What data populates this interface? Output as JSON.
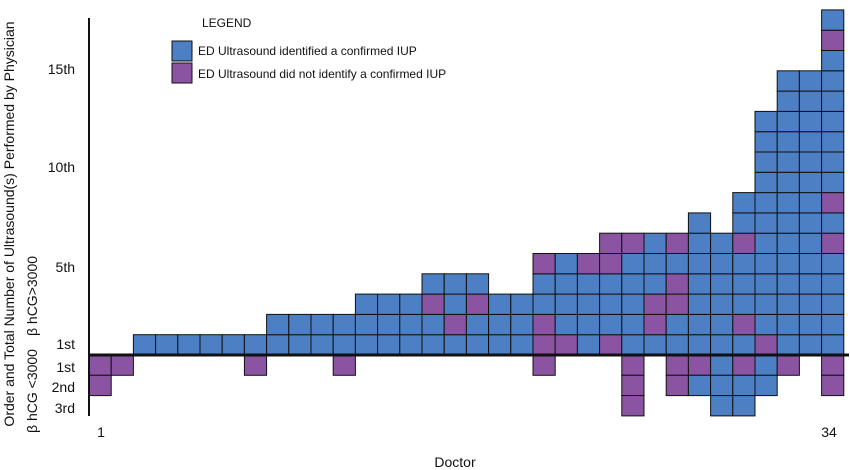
{
  "chart_data": {
    "type": "bar",
    "xlabel": "Doctor",
    "ylabel": "Order and Total Number of Ultrasound(s) Performed by Physician",
    "x_tick_labels": [
      "1",
      "34"
    ],
    "doctors": [
      1,
      2,
      3,
      4,
      5,
      6,
      7,
      8,
      9,
      10,
      11,
      12,
      13,
      14,
      15,
      16,
      17,
      18,
      19,
      20,
      21,
      22,
      23,
      24,
      25,
      26,
      27,
      28,
      29,
      30,
      31,
      32,
      33,
      34
    ],
    "upper_axis_label": "β hCG>3000",
    "lower_axis_label": "β hCG <3000",
    "upper_tick_labels": [
      {
        "label": "1st",
        "order": 1
      },
      {
        "label": "5th",
        "order": 5
      },
      {
        "label": "10th",
        "order": 10
      },
      {
        "label": "15th",
        "order": 15
      }
    ],
    "lower_tick_labels": [
      {
        "label": "1st",
        "order": 1
      },
      {
        "label": "2nd",
        "order": 2
      },
      {
        "label": "3rd",
        "order": 3
      }
    ],
    "legend": {
      "title": "LEGEND",
      "items": [
        {
          "label": "ED Ultrasound identified a confirmed IUP",
          "code": "B",
          "color": "#4d7fc4"
        },
        {
          "label": "ED Ultrasound did not identify a confirmed IUP",
          "code": "P",
          "color": "#8b54a3"
        }
      ]
    },
    "colors": {
      "B": "#4d7fc4",
      "P": "#8b54a3"
    },
    "upper_stacks": [
      "",
      "",
      "B",
      "B",
      "B",
      "B",
      "B",
      "B",
      "BB",
      "BB",
      "BB",
      "BB",
      "BBB",
      "BBB",
      "BBB",
      "BBPB",
      "BPBB",
      "BBPB",
      "BBB",
      "BBB",
      "PPBBP",
      "PBBBB",
      "BBBBP",
      "PBBBPP",
      "BBBBBP",
      "BPPBBB",
      "BBPPBP",
      "BBBBBBB",
      "BBBBBB",
      "BPBBBPBB",
      "PBBBBBBBBBBB",
      "BBBBBBBBBBBBBB",
      "BBBBBBBBBBBBBB",
      "BBBBBPBPBBBBBBBPB"
    ],
    "lower_stacks": [
      "PP",
      "P",
      "",
      "",
      "",
      "",
      "",
      "P",
      "",
      "",
      "",
      "P",
      "",
      "",
      "",
      "",
      "",
      "",
      "",
      "",
      "P",
      "",
      "",
      "",
      "PPP",
      "",
      "PP",
      "PB",
      "BBB",
      "PBB",
      "BB",
      "P",
      "",
      "PP"
    ]
  }
}
